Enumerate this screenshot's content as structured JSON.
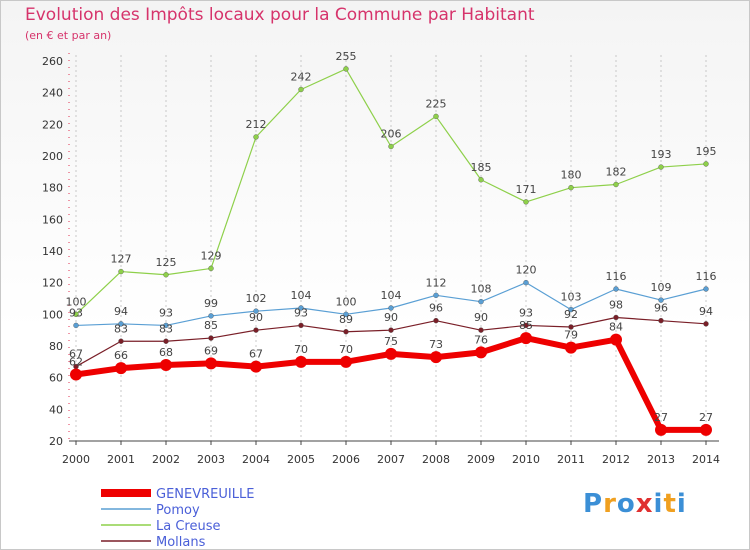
{
  "header": {
    "title": "Evolution des Impôts locaux pour la Commune par Habitant",
    "subtitle": "(en € et par an)"
  },
  "logo": {
    "text": "Proxiti",
    "colors": [
      "#3b8fd6",
      "#f0a020",
      "#3b8fd6",
      "#e03030",
      "#3b8fd6",
      "#f0a020",
      "#3b8fd6"
    ]
  },
  "chart_data": {
    "type": "line",
    "x": [
      2000,
      2001,
      2002,
      2003,
      2004,
      2005,
      2006,
      2007,
      2008,
      2009,
      2010,
      2011,
      2012,
      2013,
      2014
    ],
    "ylim": [
      20,
      260
    ],
    "yticks": [
      20,
      40,
      60,
      80,
      100,
      120,
      140,
      160,
      180,
      200,
      220,
      240,
      260
    ],
    "grid": "x-only",
    "legend_position": "bottom-left",
    "series": [
      {
        "name": "Mollans",
        "color": "#7a1f28",
        "width": 1.2,
        "marker": 2.5,
        "values": [
          67,
          83,
          83,
          85,
          90,
          93,
          89,
          90,
          96,
          90,
          93,
          92,
          98,
          96,
          94
        ]
      },
      {
        "name": "Pomoy",
        "color": "#5a9fd4",
        "width": 1.2,
        "marker": 2.5,
        "values": [
          93,
          94,
          93,
          99,
          102,
          104,
          100,
          104,
          112,
          108,
          120,
          103,
          116,
          109,
          116
        ]
      },
      {
        "name": "La Creuse",
        "color": "#8ed04a",
        "width": 1.2,
        "marker": 2.5,
        "values": [
          100,
          127,
          125,
          129,
          212,
          242,
          255,
          206,
          225,
          185,
          171,
          180,
          182,
          193,
          195
        ]
      },
      {
        "name": "GENEVREUILLE",
        "color": "#ee0000",
        "width": 6,
        "marker": 6,
        "values": [
          62,
          66,
          68,
          69,
          67,
          70,
          70,
          75,
          73,
          76,
          85,
          79,
          84,
          27,
          27
        ]
      }
    ],
    "legend_order": [
      "GENEVREUILLE",
      "Pomoy",
      "La Creuse",
      "Mollans"
    ]
  }
}
